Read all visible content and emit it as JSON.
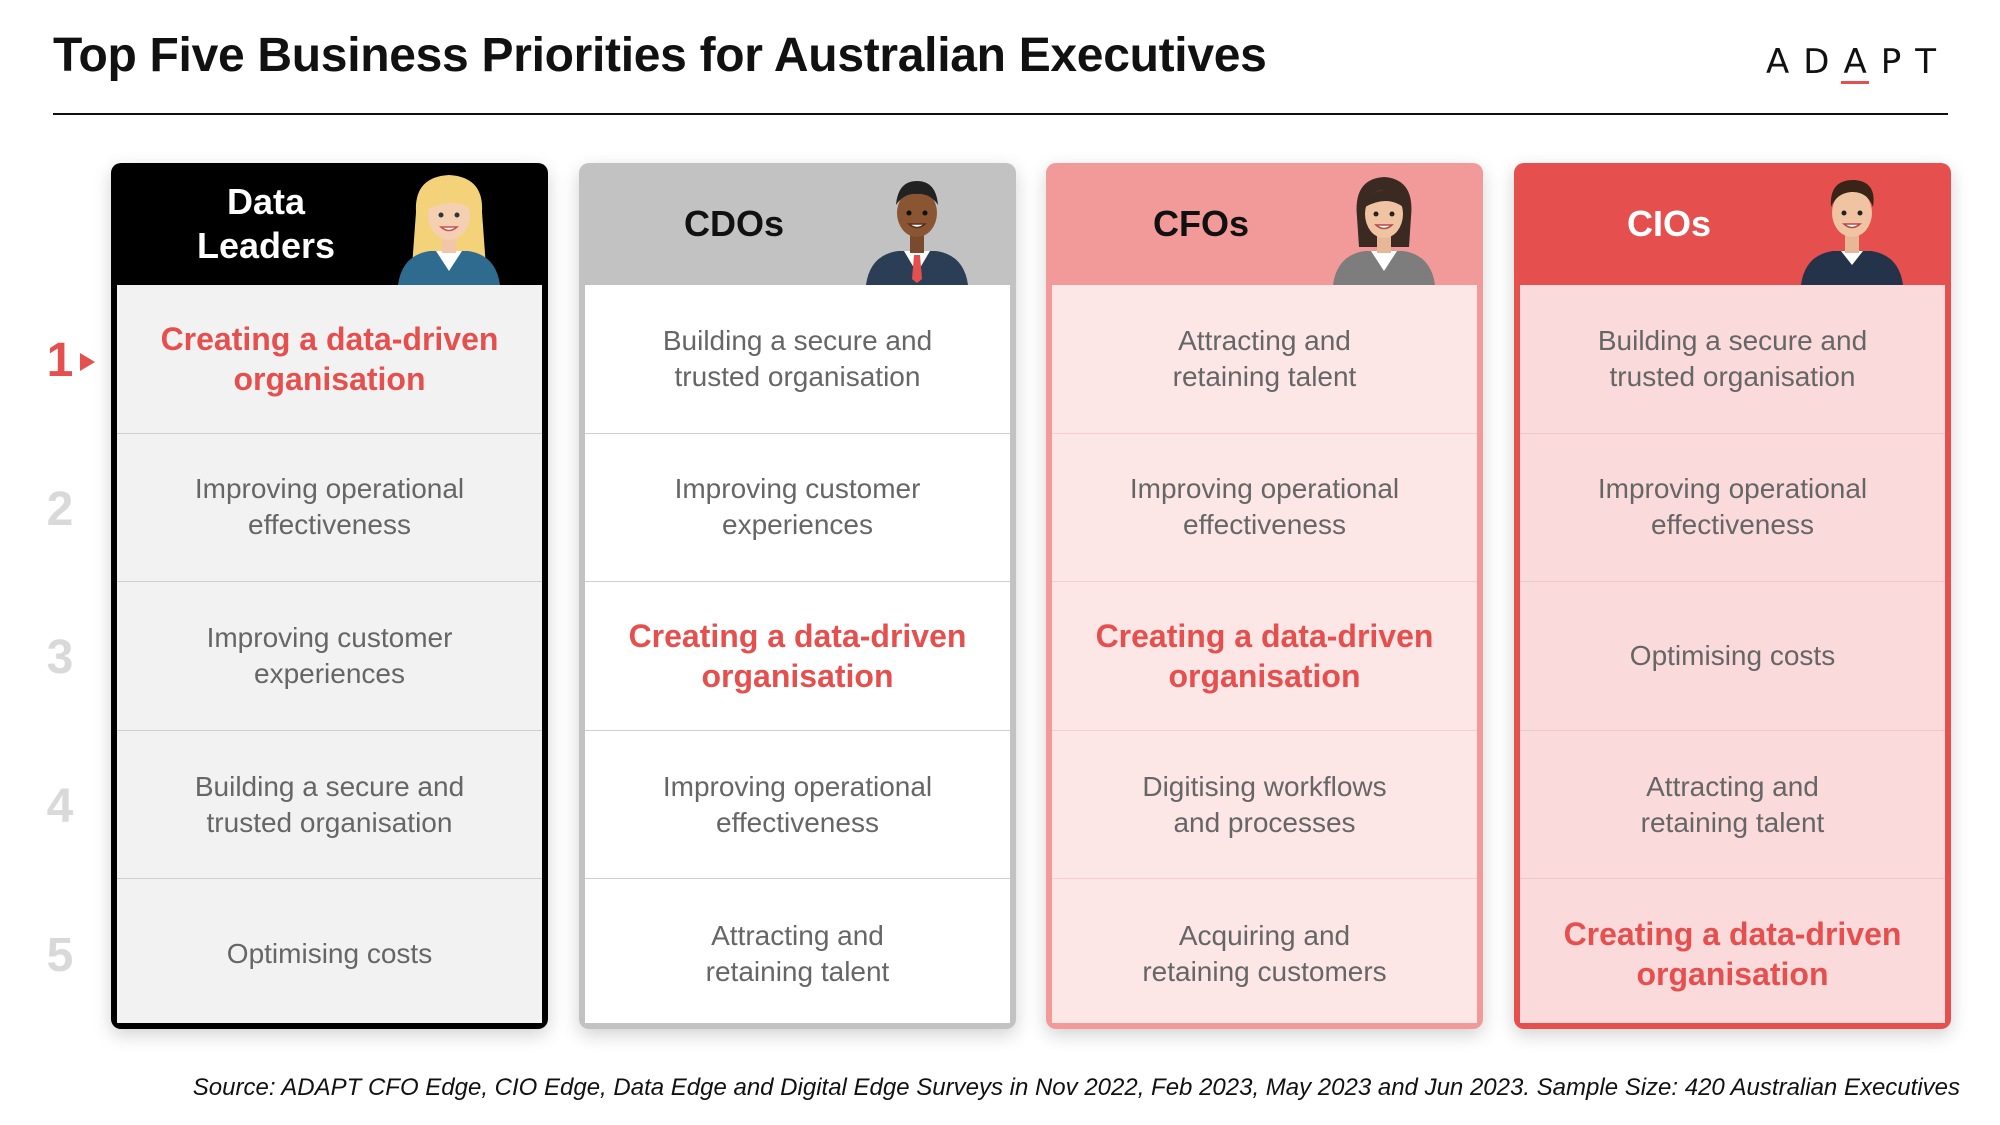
{
  "title": "Top Five Business Priorities for Australian Executives",
  "logo": {
    "left": "AD",
    "alt": "A",
    "right": "PT"
  },
  "ranks": [
    "1",
    "2",
    "3",
    "4",
    "5"
  ],
  "columns": [
    {
      "header": "Data\nLeaders",
      "avatar_icon": "woman-blonde-avatar-icon",
      "priorities": [
        {
          "text": "Creating a data-driven\norganisation",
          "highlight": true
        },
        {
          "text": "Improving operational\neffectiveness",
          "highlight": false
        },
        {
          "text": "Improving customer\nexperiences",
          "highlight": false
        },
        {
          "text": "Building a secure and\ntrusted organisation",
          "highlight": false
        },
        {
          "text": "Optimising costs",
          "highlight": false
        }
      ]
    },
    {
      "header": "CDOs",
      "avatar_icon": "man-suit-avatar-icon",
      "priorities": [
        {
          "text": "Building a secure and\ntrusted organisation",
          "highlight": false
        },
        {
          "text": "Improving customer\nexperiences",
          "highlight": false
        },
        {
          "text": "Creating a data-driven\norganisation",
          "highlight": true
        },
        {
          "text": "Improving operational\neffectiveness",
          "highlight": false
        },
        {
          "text": "Attracting and\nretaining talent",
          "highlight": false
        }
      ]
    },
    {
      "header": "CFOs",
      "avatar_icon": "woman-grey-blazer-avatar-icon",
      "priorities": [
        {
          "text": "Attracting and\nretaining talent",
          "highlight": false
        },
        {
          "text": "Improving operational\neffectiveness",
          "highlight": false
        },
        {
          "text": "Creating a data-driven\norganisation",
          "highlight": true
        },
        {
          "text": "Digitising workflows\nand processes",
          "highlight": false
        },
        {
          "text": "Acquiring and\nretaining customers",
          "highlight": false
        }
      ]
    },
    {
      "header": "CIOs",
      "avatar_icon": "man-navy-sweater-avatar-icon",
      "priorities": [
        {
          "text": "Building a secure and\ntrusted organisation",
          "highlight": false
        },
        {
          "text": "Improving operational\neffectiveness",
          "highlight": false
        },
        {
          "text": "Optimising costs",
          "highlight": false
        },
        {
          "text": "Attracting and\nretaining talent",
          "highlight": false
        },
        {
          "text": "Creating a data-driven\norganisation",
          "highlight": true
        }
      ]
    }
  ],
  "source": "Source: ADAPT CFO Edge, CIO Edge, Data Edge and Digital Edge Surveys in Nov 2022, Feb 2023, May 2023 and Jun 2023. Sample Size: 420 Australian Executives",
  "colors": {
    "accent": "#e5504e",
    "muted_rank": "#d9d9d9"
  }
}
